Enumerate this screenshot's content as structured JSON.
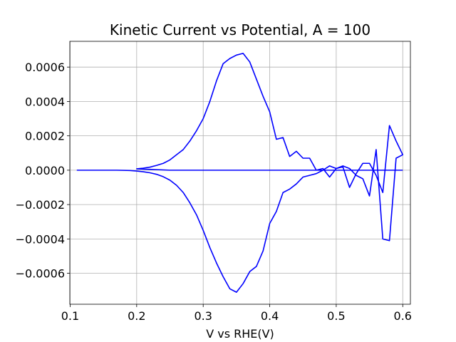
{
  "chart_data": {
    "type": "line",
    "title": "Kinetic Current vs Potential, A = 100",
    "xlabel": "V vs RHE(V)",
    "ylabel": "",
    "xlim": [
      0.0995,
      0.6115
    ],
    "ylim": [
      -0.00078,
      0.00075
    ],
    "xticks": [
      0.1,
      0.2,
      0.3,
      0.4,
      0.5,
      0.6
    ],
    "xtick_labels": [
      "0.1",
      "0.2",
      "0.3",
      "0.4",
      "0.5",
      "0.6"
    ],
    "yticks": [
      -0.0006,
      -0.0004,
      -0.0002,
      0.0,
      0.0002,
      0.0004,
      0.0006
    ],
    "ytick_labels": [
      "−0.0006",
      "−0.0004",
      "−0.0002",
      "0.0000",
      "0.0002",
      "0.0004",
      "0.0006"
    ],
    "grid": true,
    "legend": "none",
    "series": [
      {
        "color": "#0000ff",
        "x": [
          0.11,
          0.13,
          0.15,
          0.17,
          0.19,
          0.2,
          0.21,
          0.22,
          0.23,
          0.24,
          0.25,
          0.26,
          0.27,
          0.28,
          0.29,
          0.3,
          0.31,
          0.32,
          0.33,
          0.34,
          0.35,
          0.36,
          0.37,
          0.38,
          0.39,
          0.4,
          0.41,
          0.42,
          0.43,
          0.44,
          0.45,
          0.46,
          0.47,
          0.48,
          0.49,
          0.5,
          0.51,
          0.52,
          0.53,
          0.54,
          0.55,
          0.56,
          0.57,
          0.58,
          0.59,
          0.6,
          0.6,
          0.59,
          0.58,
          0.57,
          0.56,
          0.55,
          0.54,
          0.53,
          0.52,
          0.51,
          0.5,
          0.49,
          0.48,
          0.47,
          0.46,
          0.45,
          0.44,
          0.43,
          0.42,
          0.41,
          0.4,
          0.39,
          0.38,
          0.37,
          0.36,
          0.35,
          0.34,
          0.33,
          0.32,
          0.31,
          0.3,
          0.29,
          0.28,
          0.27,
          0.26,
          0.25,
          0.24,
          0.23,
          0.22,
          0.21,
          0.2,
          0.2,
          0.25,
          0.3,
          0.35,
          0.4,
          0.45,
          0.5,
          0.55,
          0.6
        ],
        "y": [
          0.0,
          0.0,
          0.0,
          0.0,
          -2e-06,
          -5e-06,
          -9e-06,
          -1.5e-05,
          -2.4e-05,
          -3.8e-05,
          -5.8e-05,
          -8.8e-05,
          -0.00013,
          -0.00019,
          -0.00026,
          -0.00035,
          -0.00045,
          -0.00054,
          -0.00062,
          -0.00069,
          -0.00071,
          -0.00066,
          -0.00059,
          -0.00056,
          -0.00047,
          -0.00031,
          -0.00024,
          -0.00013,
          -0.00011,
          -8e-05,
          -4e-05,
          -3e-05,
          -2e-05,
          0.0,
          2.5e-05,
          1e-05,
          2.5e-05,
          1e-05,
          -3e-05,
          -5e-05,
          -0.00015,
          0.00012,
          -0.0004,
          -0.00041,
          7e-05,
          9e-05,
          9e-05,
          0.00017,
          0.00026,
          -0.00013,
          -3e-05,
          4e-05,
          4e-05,
          -2e-05,
          -0.0001,
          2e-05,
          1e-05,
          -4e-05,
          1e-05,
          0.0,
          7e-05,
          7e-05,
          0.00011,
          8e-05,
          0.00019,
          0.00018,
          0.00034,
          0.00043,
          0.00053,
          0.00063,
          0.00068,
          0.00067,
          0.00065,
          0.00062,
          0.00052,
          0.0004,
          0.0003,
          0.00023,
          0.00017,
          0.00012,
          9e-05,
          6e-05,
          4e-05,
          2.8e-05,
          1.8e-05,
          1.2e-05,
          8e-06,
          8e-06,
          0.0,
          0.0,
          0.0,
          0.0,
          0.0,
          0.0,
          0.0,
          0.0
        ]
      }
    ]
  }
}
